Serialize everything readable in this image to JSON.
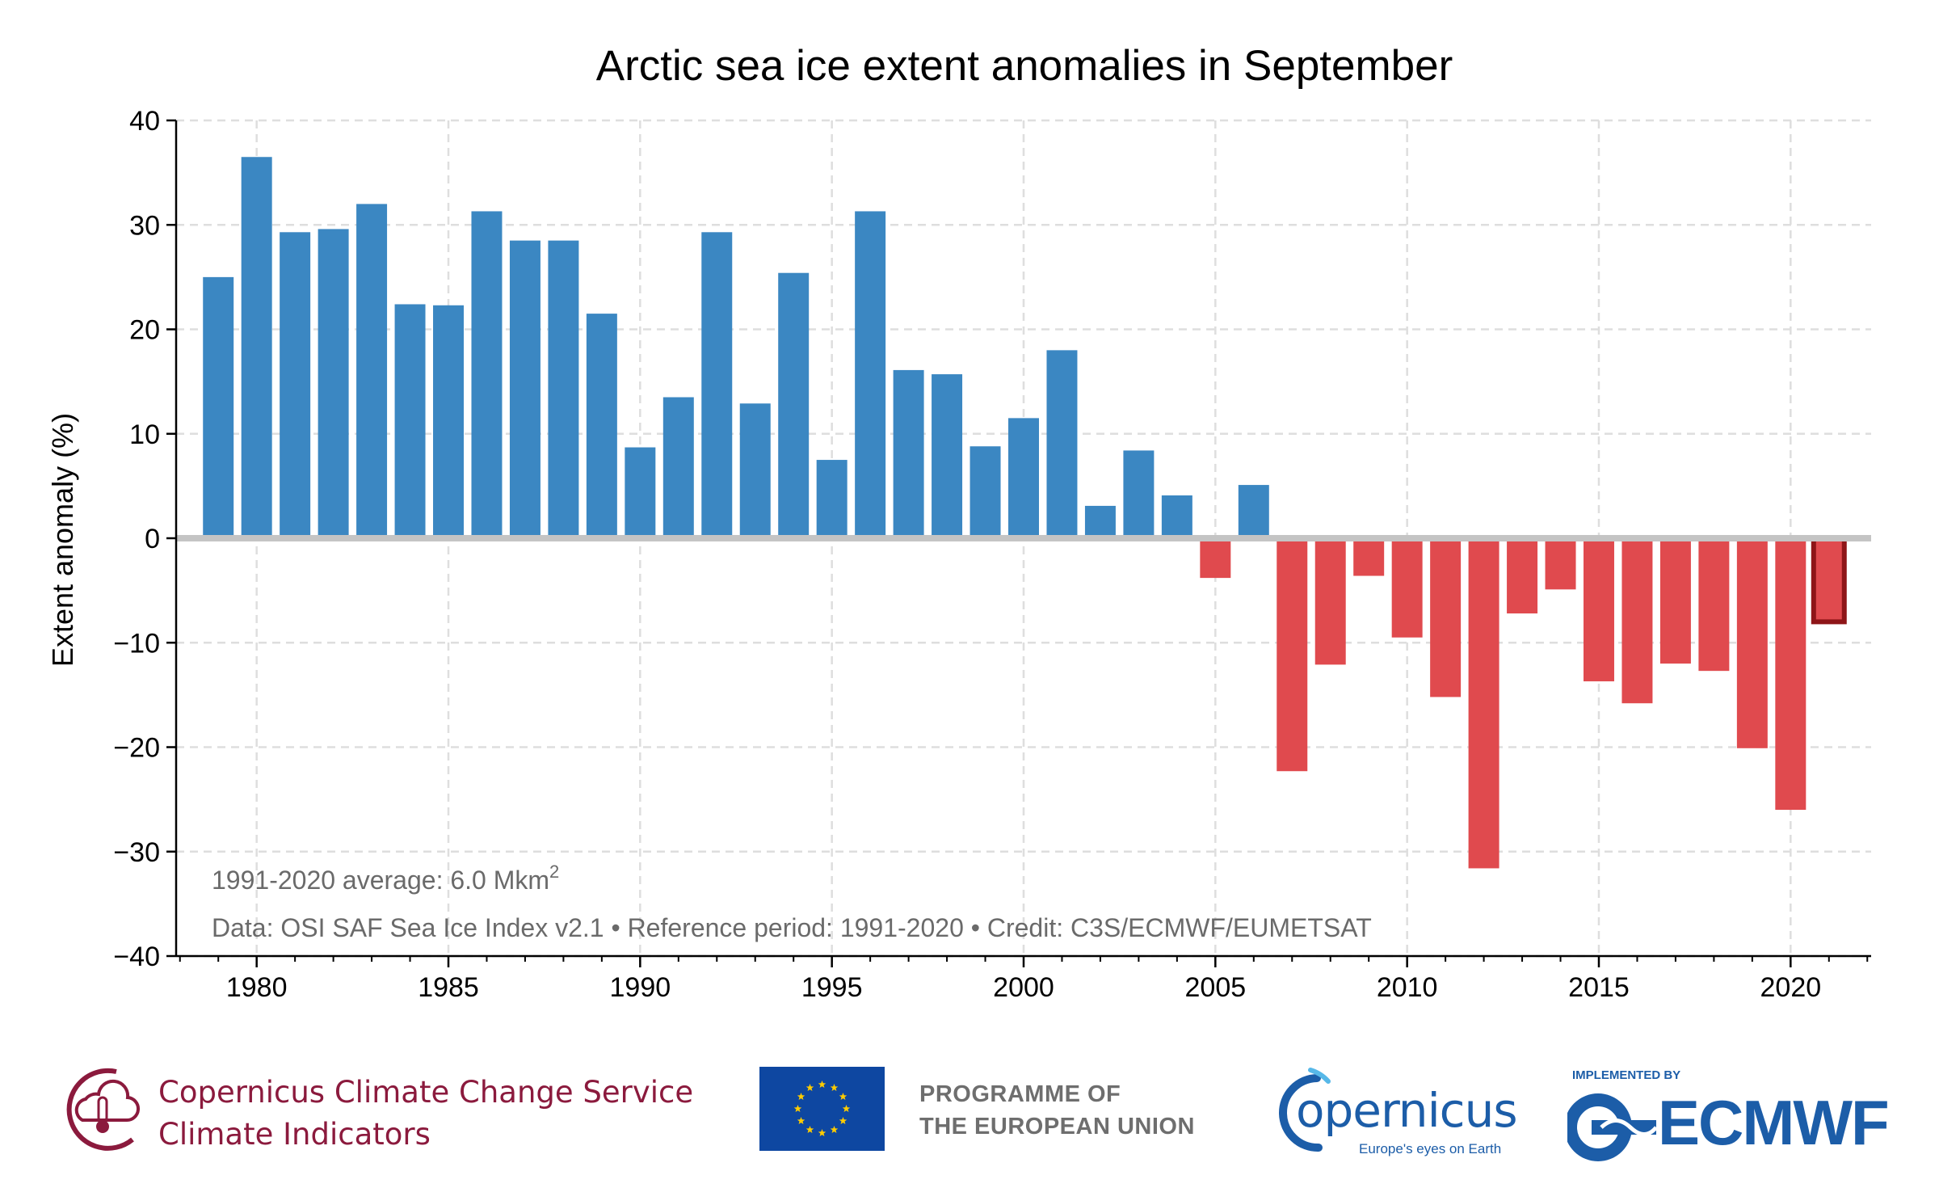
{
  "chart_data": {
    "type": "bar",
    "title": "Arctic sea ice extent anomalies in September",
    "xlabel": "",
    "ylabel": "Extent anomaly (%)",
    "ylim": [
      -40,
      40
    ],
    "xlim": [
      1977.9,
      2022.1
    ],
    "yticks": [
      40,
      30,
      20,
      10,
      0,
      -10,
      -20,
      -30,
      -40
    ],
    "ytick_labels": [
      "40",
      "30",
      "20",
      "10",
      "0",
      "−10",
      "−20",
      "−30",
      "−40"
    ],
    "xticks": [
      1980,
      1985,
      1990,
      1995,
      2000,
      2005,
      2010,
      2015,
      2020
    ],
    "grid": true,
    "years": [
      1979,
      1980,
      1981,
      1982,
      1983,
      1984,
      1985,
      1986,
      1987,
      1988,
      1989,
      1990,
      1991,
      1992,
      1993,
      1994,
      1995,
      1996,
      1997,
      1998,
      1999,
      2000,
      2001,
      2002,
      2003,
      2004,
      2005,
      2006,
      2007,
      2008,
      2009,
      2010,
      2011,
      2012,
      2013,
      2014,
      2015,
      2016,
      2017,
      2018,
      2019,
      2020,
      2021
    ],
    "values": [
      25.0,
      36.5,
      29.3,
      29.6,
      32.0,
      22.4,
      22.3,
      31.3,
      28.5,
      28.5,
      21.5,
      8.7,
      13.5,
      29.3,
      12.9,
      25.4,
      7.5,
      31.3,
      16.1,
      15.7,
      8.8,
      11.5,
      18.0,
      3.1,
      8.4,
      4.1,
      -3.8,
      5.1,
      -22.3,
      -12.1,
      -3.6,
      -9.5,
      -15.2,
      -31.6,
      -7.2,
      -4.9,
      -13.7,
      -15.8,
      -12.0,
      -12.7,
      -20.1,
      -26.0,
      -8.0
    ],
    "highlight_year": 2021,
    "colors": {
      "positive": "#3b87c2",
      "negative": "#e04a4e",
      "highlight_edge": "#8e1518",
      "zero_line": "#c4c4c4",
      "grid": "#dedede"
    },
    "annotations": {
      "average_prefix": "1991-2020 average: 6.0 Mkm",
      "average_sup": "2",
      "data_source": "Data: OSI SAF Sea Ice Index v2.1 • Reference period: 1991-2020 • Credit: C3S/ECMWF/EUMETSAT"
    }
  },
  "footer": {
    "c3s_line1": "Copernicus Climate Change Service",
    "c3s_line2": "Climate Indicators",
    "eu_line1": "PROGRAMME OF",
    "eu_line2": "THE EUROPEAN UNION",
    "copernicus_word": "opernicus",
    "copernicus_tagline": "Europe's eyes on Earth",
    "ecmwf_implemented": "IMPLEMENTED BY",
    "ecmwf_word": "ECMWF",
    "colors": {
      "c3s": "#8b1a3d",
      "eu_blue": "#0e47a1",
      "eu_star": "#ffcc00",
      "eu_text": "#6e6e6e",
      "copernicus": "#1c5da8",
      "ecmwf": "#1c5da8"
    }
  }
}
